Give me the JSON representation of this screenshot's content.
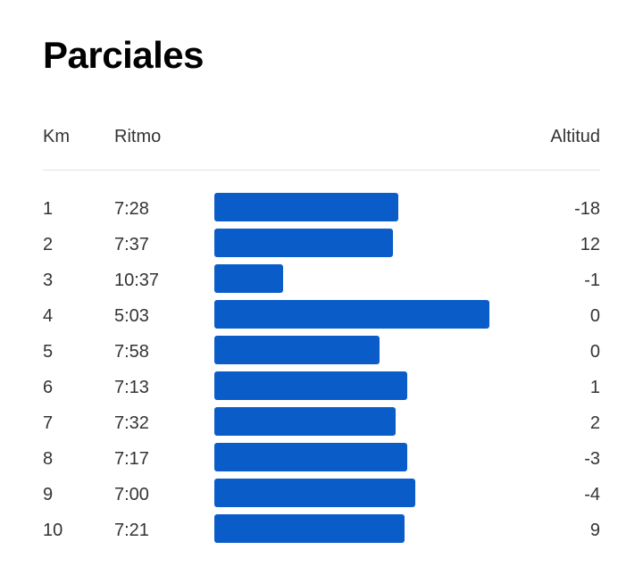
{
  "title": "Parciales",
  "header": {
    "km": "Km",
    "pace": "Ritmo",
    "elevation": "Altitud"
  },
  "bar_color": "#0a5cc8",
  "splits": [
    {
      "km": "1",
      "pace": "7:28",
      "elevation": "-18",
      "bar_fraction": 0.67
    },
    {
      "km": "2",
      "pace": "7:37",
      "elevation": "12",
      "bar_fraction": 0.65
    },
    {
      "km": "3",
      "pace": "10:37",
      "elevation": "-1",
      "bar_fraction": 0.25
    },
    {
      "km": "4",
      "pace": "5:03",
      "elevation": "0",
      "bar_fraction": 1.0
    },
    {
      "km": "5",
      "pace": "7:58",
      "elevation": "0",
      "bar_fraction": 0.6
    },
    {
      "km": "6",
      "pace": "7:13",
      "elevation": "1",
      "bar_fraction": 0.7
    },
    {
      "km": "7",
      "pace": "7:32",
      "elevation": "2",
      "bar_fraction": 0.66
    },
    {
      "km": "8",
      "pace": "7:17",
      "elevation": "-3",
      "bar_fraction": 0.7
    },
    {
      "km": "9",
      "pace": "7:00",
      "elevation": "-4",
      "bar_fraction": 0.73
    },
    {
      "km": "10",
      "pace": "7:21",
      "elevation": "9",
      "bar_fraction": 0.69
    }
  ]
}
